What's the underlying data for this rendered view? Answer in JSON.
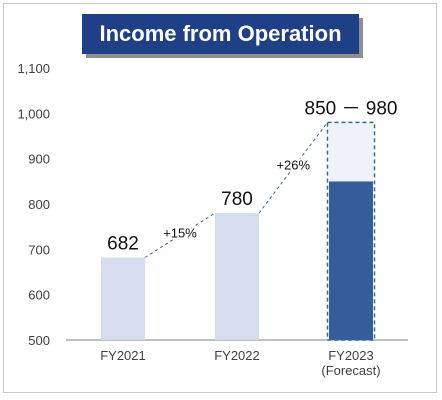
{
  "chart_data": {
    "type": "bar",
    "title": "Income from Operation",
    "categories": [
      "FY2021",
      "FY2022",
      "FY2023\n(Forecast)"
    ],
    "category_lines": [
      [
        "FY2021"
      ],
      [
        "FY2022"
      ],
      [
        "FY2023",
        "(Forecast)"
      ]
    ],
    "values": [
      682,
      780,
      850
    ],
    "forecast_range": {
      "category": "FY2023\n(Forecast)",
      "low": 850,
      "high": 980,
      "label": "850 － 980"
    },
    "data_labels": [
      "682",
      "780",
      "850 － 980"
    ],
    "growth_annotations": [
      "+15%",
      "+26%"
    ],
    "y_ticks": [
      "500",
      "600",
      "700",
      "800",
      "900",
      "1,000",
      "1,100"
    ],
    "y_tick_values": [
      500,
      600,
      700,
      800,
      900,
      1000,
      1100
    ],
    "ylim": [
      500,
      1100
    ],
    "xlabel": "",
    "ylabel": "",
    "grid": false,
    "colors": {
      "actual_bar": "#d5dced",
      "forecast_low": "#365c9a",
      "forecast_range": "#eef2f9",
      "dashed_outline": "#2e69a8",
      "title_bg": "#1f3f86",
      "axis": "#808080"
    }
  }
}
